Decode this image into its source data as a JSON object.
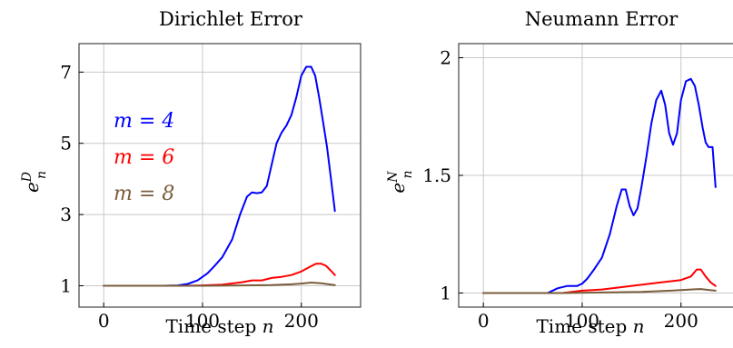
{
  "chart_data": [
    {
      "type": "line",
      "title": "Dirichlet Error",
      "xlabel": "Time step n",
      "ylabel": "e_n^D",
      "xlim": [
        -25,
        260
      ],
      "ylim": [
        0.4,
        7.8
      ],
      "xticks": [
        0,
        100,
        200
      ],
      "xtick_labels": [
        "0",
        "100",
        "200"
      ],
      "yticks": [
        1,
        3,
        5,
        7
      ],
      "ytick_labels": [
        "1",
        "3",
        "5",
        "7"
      ],
      "grid": true,
      "legend": {
        "placement": "left-middle",
        "entries": [
          "m = 4",
          "m = 6",
          "m = 8"
        ]
      },
      "series": [
        {
          "name": "m = 4",
          "color": "#0000ff",
          "x": [
            0,
            20,
            40,
            60,
            75,
            85,
            95,
            105,
            112,
            120,
            130,
            138,
            145,
            150,
            155,
            160,
            165,
            170,
            175,
            180,
            185,
            190,
            195,
            200,
            205,
            210,
            214,
            218,
            222,
            226,
            230,
            234
          ],
          "y": [
            1.0,
            1.0,
            1.0,
            1.0,
            1.01,
            1.05,
            1.15,
            1.35,
            1.55,
            1.8,
            2.3,
            3.0,
            3.5,
            3.62,
            3.6,
            3.62,
            3.8,
            4.4,
            5.0,
            5.3,
            5.5,
            5.8,
            6.3,
            6.9,
            7.15,
            7.15,
            6.9,
            6.3,
            5.6,
            4.9,
            4.0,
            3.1
          ]
        },
        {
          "name": "m = 6",
          "color": "#ff0000",
          "x": [
            0,
            40,
            80,
            100,
            120,
            140,
            150,
            160,
            170,
            180,
            190,
            200,
            210,
            215,
            220,
            225,
            230,
            234
          ],
          "y": [
            1.0,
            1.0,
            1.0,
            1.01,
            1.03,
            1.1,
            1.15,
            1.15,
            1.22,
            1.25,
            1.3,
            1.4,
            1.55,
            1.62,
            1.62,
            1.56,
            1.42,
            1.3
          ]
        },
        {
          "name": "m = 8",
          "color": "#7a5c3a",
          "x": [
            0,
            60,
            100,
            140,
            170,
            190,
            200,
            210,
            220,
            230,
            234
          ],
          "y": [
            1.0,
            1.0,
            1.0,
            1.01,
            1.02,
            1.04,
            1.06,
            1.09,
            1.07,
            1.03,
            1.02
          ]
        }
      ]
    },
    {
      "type": "line",
      "title": "Neumann Error",
      "xlabel": "Time step n",
      "ylabel": "e_n^N",
      "xlim": [
        -25,
        260
      ],
      "ylim": [
        0.94,
        2.06
      ],
      "xticks": [
        0,
        100,
        200
      ],
      "xtick_labels": [
        "0",
        "100",
        "200"
      ],
      "yticks": [
        1,
        1.5,
        2
      ],
      "ytick_labels": [
        "1",
        "1.5",
        "2"
      ],
      "grid": true,
      "series": [
        {
          "name": "m = 4",
          "color": "#0000ff",
          "x": [
            0,
            40,
            65,
            75,
            85,
            95,
            100,
            105,
            112,
            120,
            128,
            135,
            140,
            144,
            148,
            152,
            156,
            160,
            165,
            170,
            175,
            180,
            184,
            188,
            192,
            196,
            200,
            205,
            210,
            214,
            218,
            222,
            225,
            228,
            232,
            235
          ],
          "y": [
            1.0,
            1.0,
            1.0,
            1.02,
            1.03,
            1.03,
            1.04,
            1.06,
            1.1,
            1.15,
            1.25,
            1.37,
            1.44,
            1.44,
            1.37,
            1.33,
            1.36,
            1.45,
            1.58,
            1.72,
            1.82,
            1.86,
            1.8,
            1.68,
            1.63,
            1.68,
            1.82,
            1.9,
            1.91,
            1.88,
            1.8,
            1.7,
            1.64,
            1.62,
            1.62,
            1.45
          ]
        },
        {
          "name": "m = 6",
          "color": "#ff0000",
          "x": [
            0,
            60,
            80,
            100,
            120,
            140,
            160,
            180,
            200,
            210,
            216,
            220,
            225,
            230,
            235
          ],
          "y": [
            1.0,
            1.0,
            1.0,
            1.01,
            1.015,
            1.025,
            1.035,
            1.045,
            1.055,
            1.07,
            1.1,
            1.1,
            1.07,
            1.045,
            1.03
          ]
        },
        {
          "name": "m = 8",
          "color": "#7a5c3a",
          "x": [
            0,
            80,
            120,
            160,
            190,
            210,
            220,
            230,
            235
          ],
          "y": [
            1.0,
            1.0,
            1.002,
            1.005,
            1.01,
            1.015,
            1.017,
            1.012,
            1.01
          ]
        }
      ]
    }
  ]
}
